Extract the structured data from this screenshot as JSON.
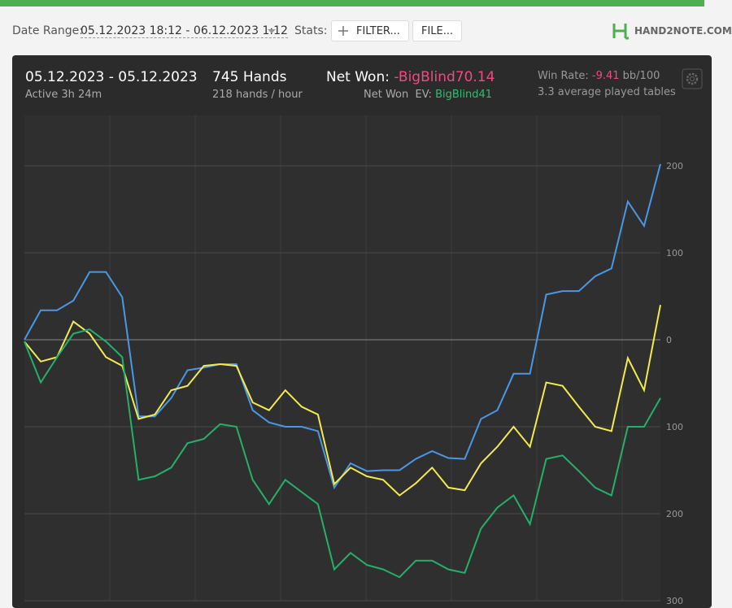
{
  "toolbar": {
    "date_range_label": "Date Range:",
    "date_range": "05.12.2023 18:12 - 06.12.2023 1:12",
    "stats_label": "Stats:",
    "filter_button": "FILTER...",
    "file_button": "FILE...",
    "logo": "HAND2NOTE.COM"
  },
  "summary": {
    "date": "05.12.2023 - 05.12.2023",
    "active": "Active 3h 24m",
    "hands": "745 Hands",
    "hands_per_hour": "218 hands / hour",
    "net_won_label": "Net Won:",
    "net_won": "-BigBlind70.14",
    "net_won_ev_label": "Net Won  EV:",
    "net_won_ev": "BigBlind41",
    "win_rate_label": "Win Rate:",
    "win_rate": "-9.41",
    "win_rate_unit": "bb/100",
    "tables": "3.3 average played tables"
  },
  "chart_data": {
    "type": "line",
    "ylim": [
      -300,
      258
    ],
    "grid": true,
    "yticks": [
      {
        "value": -300,
        "label": "300"
      },
      {
        "value": -200,
        "label": "200"
      },
      {
        "value": -100,
        "label": "100"
      },
      0,
      100,
      200
    ],
    "series": [
      {
        "color": "#4a97e8",
        "values": [
          0,
          34,
          34,
          45,
          78,
          78,
          49,
          -88,
          -88,
          -67,
          -35,
          -32,
          -28,
          -28,
          -81,
          -95,
          -100,
          -100,
          -105,
          -170,
          -142,
          -151,
          -150,
          -150,
          -137,
          -128,
          -136,
          -137,
          -91,
          -81,
          -39,
          -39,
          52,
          56,
          56,
          73,
          82,
          159,
          131,
          202
        ]
      },
      {
        "color": "#f2ea4e",
        "values": [
          -2,
          -25,
          -20,
          21,
          7,
          -20,
          -30,
          -91,
          -86,
          -58,
          -53,
          -30,
          -28,
          -30,
          -72,
          -81,
          -58,
          -77,
          -86,
          -166,
          -147,
          -157,
          -161,
          -179,
          -165,
          -147,
          -170,
          -173,
          -142,
          -123,
          -100,
          -123,
          -49,
          -53,
          -77,
          -100,
          -105,
          -21,
          -58,
          40
        ]
      },
      {
        "color": "#25b06a",
        "values": [
          -2,
          -49,
          -20,
          7,
          12,
          -2,
          -20,
          -161,
          -157,
          -147,
          -119,
          -114,
          -97,
          -100,
          -161,
          -189,
          -161,
          -175,
          -189,
          -264,
          -245,
          -259,
          -264,
          -273,
          -254,
          -254,
          -264,
          -268,
          -217,
          -193,
          -179,
          -212,
          -137,
          -133,
          -151,
          -170,
          -179,
          -100,
          -100,
          -67
        ]
      }
    ]
  }
}
